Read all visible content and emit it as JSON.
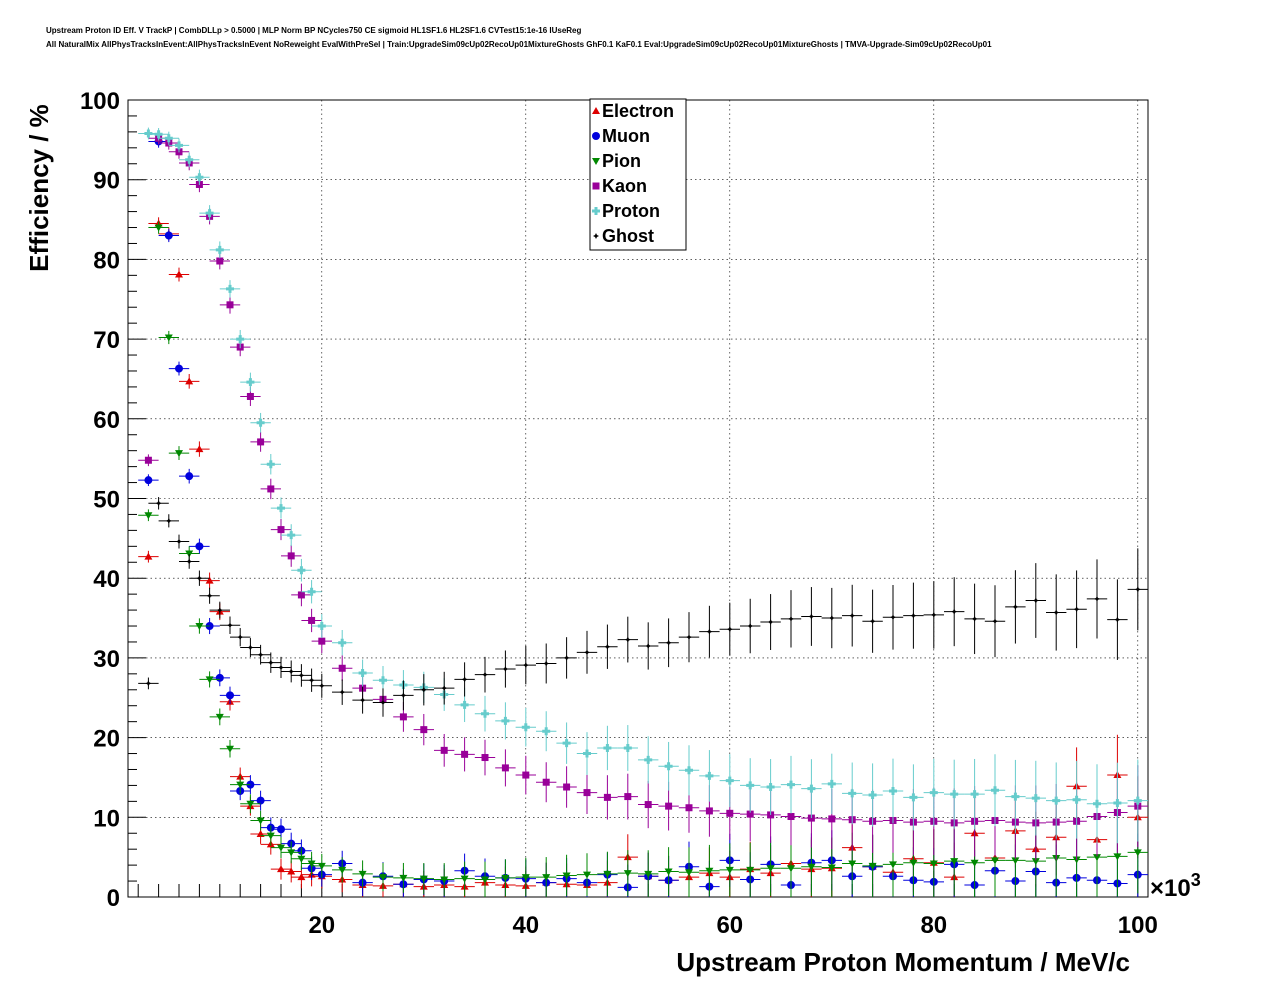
{
  "chart_data": {
    "type": "scatter",
    "title": "Upstream Proton ID Eff. V TrackP | CombDLLp > 0.5000 | MLP Norm BP NCycles750 CE sigmoid HL1SF1.6 HL2SF1.6 CVTest15:1e-16 IUseReg",
    "subtitle": "All NaturalMix AllPhysTracksInEvent:AllPhysTracksInEvent NoReweight EvalWithPreSel | Train:UpgradeSim09cUp02RecoUp01MixtureGhosts GhF0.1 KaF0.1 Eval:UpgradeSim09cUp02RecoUp01MixtureGhosts | TMVA-Upgrade-Sim09cUp02RecoUp01",
    "xlabel": "Upstream Proton Momentum / MeV/c",
    "ylabel": "Efficiency / %",
    "x_exponent_label": "×10",
    "x_exponent_power": "3",
    "xlim": [
      1,
      101
    ],
    "ylim": [
      0,
      100
    ],
    "x_ticks": [
      20,
      40,
      60,
      80,
      100
    ],
    "x_tick_labels": [
      "20",
      "40",
      "60",
      "80",
      "100"
    ],
    "y_ticks": [
      0,
      10,
      20,
      30,
      40,
      50,
      60,
      70,
      80,
      90,
      100
    ],
    "y_tick_labels": [
      "0",
      "10",
      "20",
      "30",
      "40",
      "50",
      "60",
      "70",
      "80",
      "90",
      "100"
    ],
    "grid": true,
    "legend_position": "top-center",
    "x": [
      3,
      4,
      5,
      6,
      7,
      8,
      9,
      10,
      11,
      12,
      13,
      14,
      15,
      16,
      17,
      18,
      19,
      20,
      22,
      24,
      26,
      28,
      30,
      32,
      34,
      36,
      38,
      40,
      42,
      44,
      46,
      48,
      50,
      52,
      54,
      56,
      58,
      60,
      62,
      64,
      66,
      68,
      70,
      72,
      74,
      76,
      78,
      80,
      82,
      84,
      86,
      88,
      90,
      92,
      94,
      96,
      98,
      100
    ],
    "series": [
      {
        "name": "Electron",
        "color": "#dd0000",
        "marker": "triangle-up",
        "values": [
          42.7,
          84.5,
          83.2,
          78.1,
          64.7,
          56.2,
          39.7,
          35.8,
          24.5,
          15.1,
          11.4,
          7.9,
          6.6,
          3.5,
          3.2,
          2.5,
          2.8,
          2.6,
          2.2,
          1.5,
          1.4,
          1.6,
          1.3,
          1.5,
          1.3,
          1.8,
          1.5,
          1.4,
          1.8,
          1.6,
          1.5,
          1.8,
          5.0,
          2.6,
          2.1,
          2.5,
          3.0,
          2.5,
          3.5,
          3.0,
          4.2,
          3.5,
          3.6,
          6.2,
          3.8,
          3.1,
          4.8,
          4.3,
          2.5,
          8.0,
          4.9,
          8.3,
          6.0,
          7.5,
          13.9,
          7.2,
          15.3,
          10.0
        ]
      },
      {
        "name": "Muon",
        "color": "#0000dd",
        "marker": "circle",
        "values": [
          52.3,
          94.8,
          83.0,
          66.3,
          52.8,
          44.0,
          34.0,
          27.5,
          25.3,
          13.3,
          14.1,
          12.1,
          8.7,
          8.5,
          6.7,
          5.8,
          3.6,
          2.8,
          4.2,
          1.8,
          2.6,
          1.6,
          2.2,
          2.0,
          3.3,
          2.6,
          2.4,
          2.3,
          1.8,
          2.3,
          1.8,
          2.8,
          1.2,
          2.6,
          2.1,
          3.8,
          1.3,
          4.6,
          2.2,
          4.1,
          1.5,
          4.3,
          4.6,
          2.6,
          3.8,
          2.6,
          2.1,
          1.9,
          4.1,
          1.5,
          3.3,
          2.0,
          3.2,
          1.8,
          2.4,
          2.1,
          1.7,
          2.8
        ]
      },
      {
        "name": "Pion",
        "color": "#008800",
        "marker": "triangle-down",
        "values": [
          47.9,
          84.0,
          70.2,
          55.7,
          43.1,
          34.0,
          27.3,
          22.6,
          18.6,
          14.1,
          11.7,
          9.6,
          7.7,
          6.2,
          5.6,
          4.8,
          4.2,
          3.9,
          3.4,
          2.9,
          2.5,
          2.4,
          2.3,
          2.2,
          2.3,
          2.2,
          2.4,
          2.5,
          2.5,
          2.7,
          2.8,
          2.9,
          3.0,
          2.9,
          3.2,
          3.1,
          3.3,
          3.4,
          3.4,
          3.6,
          3.6,
          3.8,
          3.7,
          4.2,
          3.9,
          4.1,
          4.3,
          4.2,
          4.5,
          4.3,
          4.6,
          4.6,
          4.5,
          4.9,
          4.7,
          5.0,
          5.1,
          5.6
        ]
      },
      {
        "name": "Kaon",
        "color": "#990099",
        "marker": "square",
        "values": [
          54.8,
          95.2,
          94.6,
          93.5,
          92.1,
          89.4,
          85.4,
          79.8,
          74.3,
          69.0,
          62.8,
          57.1,
          51.2,
          46.1,
          42.8,
          37.9,
          34.7,
          32.1,
          28.7,
          26.2,
          24.8,
          22.6,
          21.0,
          18.4,
          17.9,
          17.5,
          16.2,
          15.3,
          14.4,
          13.8,
          13.1,
          12.5,
          12.6,
          11.6,
          11.4,
          11.2,
          10.8,
          10.5,
          10.4,
          10.3,
          10.1,
          9.9,
          9.8,
          9.7,
          9.5,
          9.6,
          9.4,
          9.5,
          9.3,
          9.5,
          9.6,
          9.4,
          9.3,
          9.4,
          9.5,
          10.1,
          10.6,
          11.4
        ]
      },
      {
        "name": "Proton",
        "color": "#66cccc",
        "marker": "cross",
        "values": [
          95.8,
          95.7,
          95.2,
          94.3,
          92.5,
          90.3,
          85.8,
          81.2,
          76.3,
          70.0,
          64.6,
          59.5,
          54.3,
          48.8,
          45.4,
          41.0,
          38.3,
          34.0,
          31.9,
          28.1,
          27.2,
          26.6,
          26.3,
          25.4,
          24.1,
          23.0,
          22.1,
          21.3,
          20.8,
          19.3,
          18.0,
          18.7,
          18.7,
          17.2,
          16.4,
          15.9,
          15.2,
          14.6,
          14.0,
          13.8,
          14.1,
          13.6,
          14.2,
          13.0,
          12.8,
          13.3,
          12.5,
          13.1,
          12.9,
          12.9,
          13.4,
          12.6,
          12.4,
          12.1,
          12.2,
          11.7,
          11.8,
          12.1
        ]
      },
      {
        "name": "Ghost",
        "color": "#000000",
        "marker": "star",
        "values": [
          26.8,
          49.4,
          47.2,
          44.6,
          42.1,
          40.0,
          37.8,
          36.0,
          34.1,
          32.6,
          31.3,
          30.4,
          29.4,
          28.8,
          28.3,
          27.8,
          27.2,
          26.5,
          25.7,
          24.7,
          24.4,
          25.3,
          26.0,
          26.2,
          27.3,
          27.9,
          28.6,
          29.1,
          29.3,
          30.0,
          30.7,
          31.4,
          32.3,
          31.5,
          31.9,
          32.6,
          33.3,
          33.6,
          34.0,
          34.5,
          34.9,
          35.2,
          35.0,
          35.3,
          34.6,
          35.1,
          35.3,
          35.4,
          35.8,
          34.9,
          34.6,
          36.4,
          37.2,
          35.7,
          36.1,
          37.4,
          34.8,
          38.6
        ]
      }
    ]
  }
}
